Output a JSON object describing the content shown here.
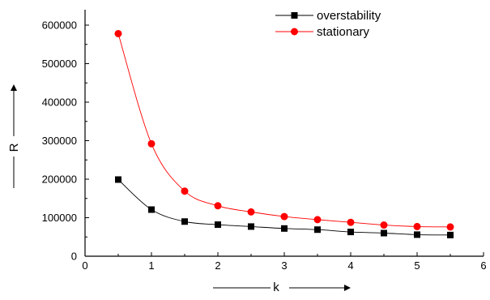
{
  "chart_data": {
    "type": "line",
    "xlabel": "k",
    "ylabel": "R",
    "xlim": [
      0,
      6
    ],
    "ylim": [
      0,
      640000
    ],
    "x_ticks": [
      0,
      1,
      2,
      3,
      4,
      5,
      6
    ],
    "x_tick_labels": [
      "0",
      "1",
      "2",
      "3",
      "4",
      "5",
      "6"
    ],
    "y_ticks": [
      0,
      100000,
      200000,
      300000,
      400000,
      500000,
      600000
    ],
    "y_tick_labels": [
      "0",
      "100000",
      "200000",
      "300000",
      "400000",
      "500000",
      "600000"
    ],
    "grid": false,
    "legend_position": "top-right",
    "series": [
      {
        "name": "overstability",
        "marker": "square",
        "color": "#000000",
        "x": [
          0.5,
          1.0,
          1.5,
          2.0,
          2.5,
          3.0,
          3.5,
          4.0,
          4.5,
          5.0,
          5.5
        ],
        "y": [
          199000,
          121000,
          90000,
          82000,
          77000,
          72000,
          69000,
          63000,
          60000,
          56000,
          55000
        ]
      },
      {
        "name": "stationary",
        "marker": "circle",
        "color": "#ff0000",
        "x": [
          0.5,
          1.0,
          1.5,
          2.0,
          2.5,
          3.0,
          3.5,
          4.0,
          4.5,
          5.0,
          5.5
        ],
        "y": [
          578000,
          292000,
          169000,
          131000,
          115000,
          103000,
          95000,
          88000,
          81000,
          77000,
          76000
        ]
      }
    ]
  }
}
